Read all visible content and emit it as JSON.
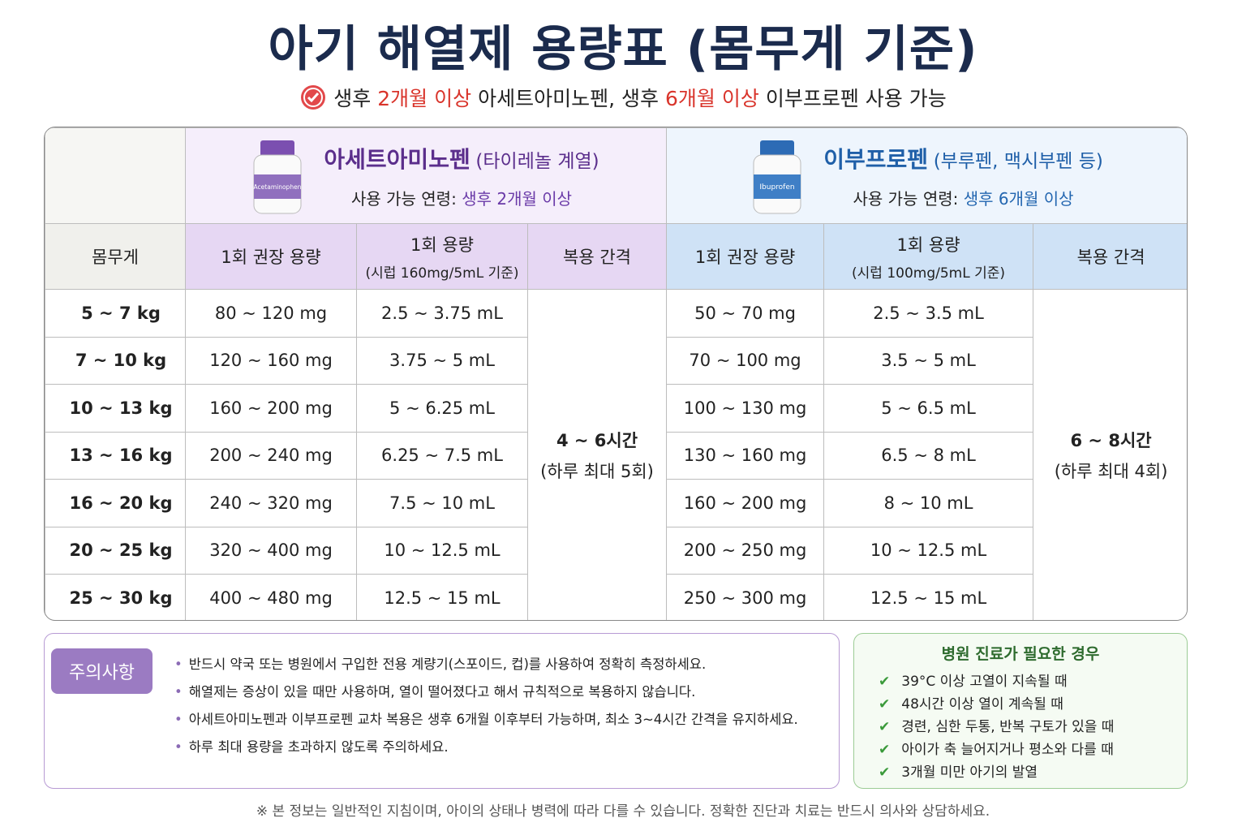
{
  "title": "아기 해열제 용량표 (몸무게 기준)",
  "subtitle": [
    "생후",
    "2개월 이상",
    "아세트아미노펜, 생후",
    "6개월 이상",
    "이부프로펜 사용 가능"
  ],
  "drugs": [
    {
      "name": "아세트아미노펜",
      "note": "(타이레놀 계열)",
      "bottle_label": "Acetaminophen",
      "age_label": "사용 가능 연령:",
      "age": "생후 2개월 이상",
      "columns": {
        "dose": "1회 권장 용량",
        "volume": "1회 용량",
        "volume_note": "(시럽 160mg/5mL 기준)",
        "interval": "복용 간격"
      },
      "interval": "4 ~ 6시간",
      "interval_note": "(하루 최대 5회)"
    },
    {
      "name": "이부프로펜",
      "note": "(부루펜, 맥시부펜 등)",
      "bottle_label": "Ibuprofen",
      "age_label": "사용 가능 연령:",
      "age": "생후 6개월 이상",
      "columns": {
        "dose": "1회 권장 용량",
        "volume": "1회 용량",
        "volume_note": "(시럽 100mg/5mL 기준)",
        "interval": "복용 간격"
      },
      "interval": "6 ~ 8시간",
      "interval_note": "(하루 최대 4회)"
    }
  ],
  "weight_header": "몸무게",
  "rows": [
    [
      "5 ~ 7 kg",
      "80 ~ 120 mg",
      "2.5 ~ 3.75 mL",
      "50 ~ 70 mg",
      "2.5 ~ 3.5 mL"
    ],
    [
      "7 ~ 10 kg",
      "120 ~ 160 mg",
      "3.75 ~ 5 mL",
      "70 ~ 100 mg",
      "3.5 ~ 5 mL"
    ],
    [
      "10 ~ 13 kg",
      "160 ~ 200 mg",
      "5 ~ 6.25 mL",
      "100 ~ 130 mg",
      "5 ~ 6.5 mL"
    ],
    [
      "13 ~ 16 kg",
      "200 ~ 240 mg",
      "6.25 ~ 7.5 mL",
      "130 ~ 160 mg",
      "6.5 ~ 8 mL"
    ],
    [
      "16 ~ 20 kg",
      "240 ~ 320 mg",
      "7.5 ~ 10 mL",
      "160 ~ 200 mg",
      "8 ~ 10 mL"
    ],
    [
      "20 ~ 25 kg",
      "320 ~ 400 mg",
      "10 ~ 12.5 mL",
      "200 ~ 250 mg",
      "10 ~ 12.5 mL"
    ],
    [
      "25 ~ 30 kg",
      "400 ~ 480 mg",
      "12.5 ~ 15 mL",
      "250 ~ 300 mg",
      "12.5 ~ 15 mL"
    ]
  ],
  "cautions": {
    "label": "주의사항",
    "items": [
      "반드시 약국 또는 병원에서 구입한 전용 계량기(스포이드, 컵)를 사용하여 정확히 측정하세요.",
      "해열제는 증상이 있을 때만 사용하며, 열이 떨어졌다고 해서 규칙적으로 복용하지 않습니다.",
      "아세트아미노펜과 이부프로펜 교차 복용은 생후 6개월 이후부터 가능하며, 최소 3~4시간 간격을 유지하세요.",
      "하루 최대 용량을 초과하지 않도록 주의하세요."
    ]
  },
  "hospital": {
    "title": "병원 진료가 필요한 경우",
    "items": [
      "39°C 이상 고열이 지속될 때",
      "48시간 이상 열이 계속될 때",
      "경련, 심한 두통, 반복 구토가 있을 때",
      "아이가 축 늘어지거나 평소와 다를 때",
      "3개월 미만 아기의 발열"
    ]
  },
  "footer": "※ 본 정보는 일반적인 지침이며, 아이의 상태나 병력에 따라 다를 수 있습니다. 정확한 진단과 치료는 반드시 의사와 상담하세요."
}
